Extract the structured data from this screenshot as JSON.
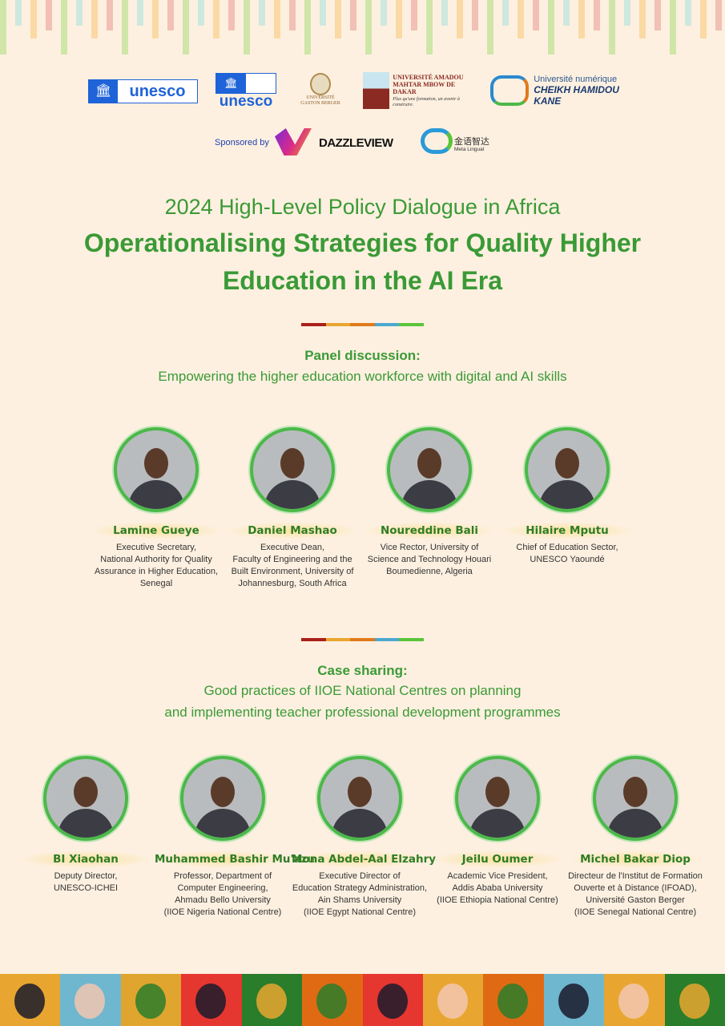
{
  "logos": {
    "unesco1": "unesco",
    "unesco2": "unesco",
    "ugb": "UNIVERSITÉ GASTON BERGER",
    "uam": "UNIVERSITÉ AMADOU MAHTAR MBOW DE DAKAR",
    "uam_tagline": "Plus qu'une formation, un avenir à construire.",
    "uncHK_line1": "Université numérique",
    "uncHK_line2": "CHEIKH HAMIDOU KANE",
    "sponsored_by": "Sponsored by",
    "dazzleview": "DAZZLEVIEW",
    "meta_cn": "金语智达",
    "meta_en": "Meta Lingual"
  },
  "header": {
    "subtitle": "2024 High-Level Policy Dialogue in Africa",
    "title_line1": "Operationalising Strategies for Quality Higher",
    "title_line2": "Education in the AI Era"
  },
  "divider_colors": [
    "#a8201a",
    "#e8a630",
    "#e07a1a",
    "#4aa8d0",
    "#5ac43a"
  ],
  "panel": {
    "heading": "Panel discussion:",
    "topic": "Empowering the higher education workforce  with digital and AI skills",
    "speakers": [
      {
        "name": "Lamine Gueye",
        "desc": [
          "Executive Secretary,",
          "National Authority for Quality",
          "Assurance in Higher Education,",
          "Senegal"
        ]
      },
      {
        "name": "Daniel Mashao",
        "desc": [
          "Executive Dean,",
          "Faculty of Engineering and the",
          "Built Environment, University of",
          "Johannesburg, South Africa"
        ]
      },
      {
        "name": "Noureddine Bali",
        "desc": [
          "Vice Rector, University of",
          "Science and Technology Houari",
          "Boumedienne, Algeria"
        ]
      },
      {
        "name": "Hilaire Mputu",
        "desc": [
          "Chief of Education Sector,",
          "UNESCO Yaoundé"
        ]
      }
    ]
  },
  "case": {
    "heading": "Case sharing:",
    "topic_line1": "Good practices of IIOE National Centres on  planning",
    "topic_line2": "and implementing teacher professional development  programmes",
    "speakers": [
      {
        "name": "BI Xiaohan",
        "desc": [
          "Deputy Director,",
          "UNESCO-ICHEI"
        ]
      },
      {
        "name": "Muhammed Bashir Mu'azu",
        "desc": [
          "Professor, Department of",
          "Computer Engineering,",
          "Ahmadu Bello University",
          "(IIOE Nigeria National Centre)"
        ]
      },
      {
        "name": "Mona Abdel-Aal Elzahry",
        "desc": [
          "Executive Director of",
          "Education Strategy Administration,",
          "Ain Shams University",
          "(IIOE Egypt National Centre)"
        ]
      },
      {
        "name": "Jeilu Oumer",
        "desc": [
          "Academic Vice President,",
          "Addis Ababa University",
          "(IIOE Ethiopia National Centre)"
        ]
      },
      {
        "name": "Michel Bakar Diop",
        "desc": [
          "Directeur de l'Institut de Formation",
          "Ouverte et à Distance (IFOAD),",
          "Université Gaston Berger",
          "(IIOE Senegal National Centre)"
        ]
      }
    ]
  },
  "footer_tiles": [
    {
      "icon": "half-circle-icon",
      "color": "#e8a630"
    },
    {
      "icon": "list-icon",
      "color": "#6fb7cf"
    },
    {
      "icon": "handshake-icon",
      "color": "#e0a52e"
    },
    {
      "icon": "globe-icon",
      "color": "#e63630"
    },
    {
      "icon": "chat-icon",
      "color": "#2a7d2a"
    },
    {
      "icon": "circuit-icon",
      "color": "#e06a14"
    },
    {
      "icon": "people-chat-icon",
      "color": "#e63630"
    },
    {
      "icon": "pixel-icon",
      "color": "#e8a630"
    },
    {
      "icon": "book-icon",
      "color": "#e06a14"
    },
    {
      "icon": "pattern-icon",
      "color": "#6fb7cf"
    },
    {
      "icon": "telescope-icon",
      "color": "#e8a630"
    },
    {
      "icon": "lightbulb-icon",
      "color": "#2a7d2a"
    }
  ]
}
